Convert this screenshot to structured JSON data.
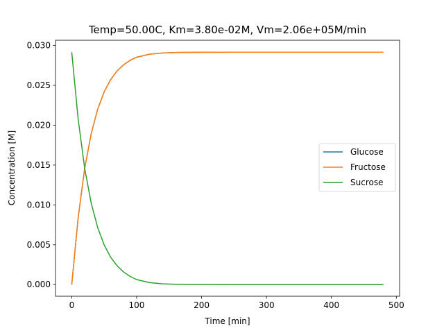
{
  "chart_data": {
    "type": "line",
    "title": "Temp=50.00C, Km=3.80e-02M, Vm=2.06e+05M/min",
    "xlabel": "Time [min]",
    "ylabel": "Concentration [M]",
    "xlim": [
      -25,
      505
    ],
    "ylim": [
      -0.00146,
      0.03066
    ],
    "xticks": [
      0,
      100,
      200,
      300,
      400,
      500
    ],
    "xtick_labels": [
      "0",
      "100",
      "200",
      "300",
      "400",
      "500"
    ],
    "yticks": [
      0.0,
      0.005,
      0.01,
      0.015,
      0.02,
      0.025,
      0.03
    ],
    "ytick_labels": [
      "0.000",
      "0.005",
      "0.010",
      "0.015",
      "0.020",
      "0.025",
      "0.030"
    ],
    "grid": false,
    "legend_position": "center-right",
    "x": [
      0,
      10,
      20,
      30,
      40,
      50,
      60,
      70,
      80,
      90,
      100,
      120,
      140,
      160,
      180,
      200,
      250,
      300,
      350,
      400,
      450,
      480
    ],
    "series": [
      {
        "name": "Glucose",
        "color": "#1f77b4",
        "values": [
          0.0,
          0.00847,
          0.0146,
          0.01894,
          0.02201,
          0.02419,
          0.02573,
          0.02682,
          0.02759,
          0.02814,
          0.02853,
          0.02891,
          0.02906,
          0.02912,
          0.02914,
          0.02915,
          0.02916,
          0.02916,
          0.02916,
          0.02916,
          0.02916,
          0.02916
        ]
      },
      {
        "name": "Fructose",
        "color": "#ff7f0e",
        "values": [
          0.0,
          0.00847,
          0.0146,
          0.01894,
          0.02201,
          0.02419,
          0.02573,
          0.02682,
          0.02759,
          0.02814,
          0.02853,
          0.02891,
          0.02906,
          0.02912,
          0.02914,
          0.02915,
          0.02916,
          0.02916,
          0.02916,
          0.02916,
          0.02916,
          0.02916
        ]
      },
      {
        "name": "Sucrose",
        "color": "#2ca02c",
        "values": [
          0.02916,
          0.02069,
          0.01456,
          0.01022,
          0.00715,
          0.00497,
          0.00343,
          0.00234,
          0.00157,
          0.00102,
          0.00063,
          0.00025,
          0.0001,
          4e-05,
          2e-05,
          1e-05,
          0.0,
          0.0,
          0.0,
          0.0,
          0.0,
          0.0
        ]
      }
    ]
  }
}
